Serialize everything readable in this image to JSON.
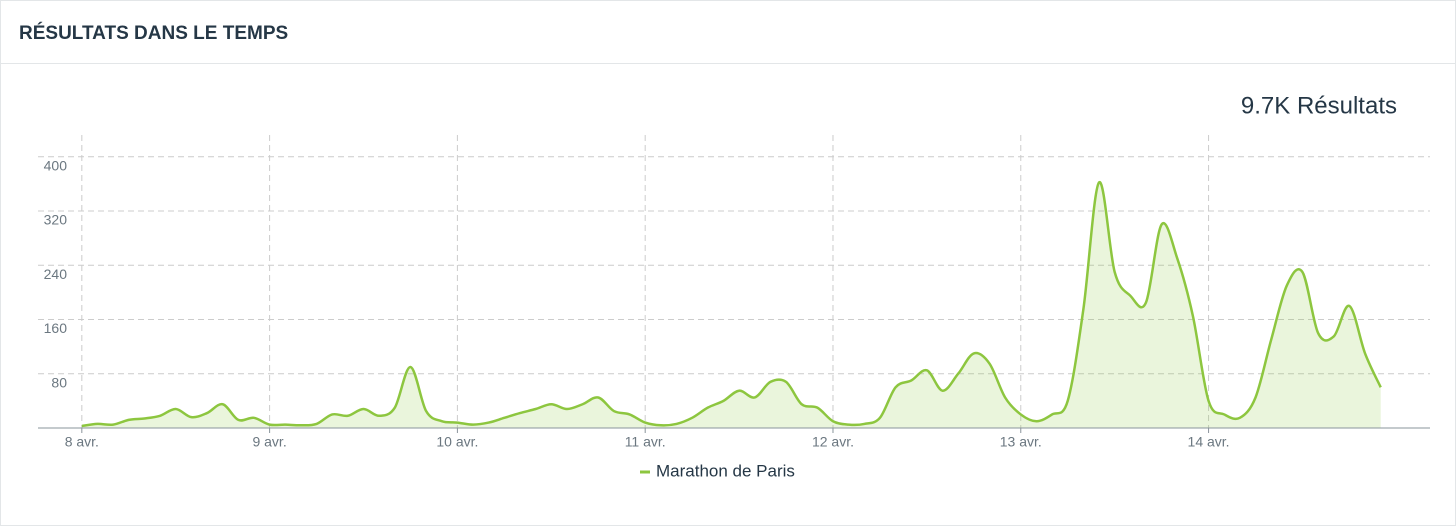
{
  "header": {
    "title": "RÉSULTATS DANS LE TEMPS"
  },
  "total": "9.7K Résultats",
  "chart_data": {
    "type": "area",
    "x": [
      0,
      2,
      4,
      6,
      8,
      10,
      12,
      14,
      16,
      18,
      20,
      22,
      24,
      26,
      28,
      30,
      32,
      34,
      36,
      38,
      40,
      42,
      44,
      46,
      48,
      50,
      52,
      54,
      56,
      58,
      60,
      62,
      64,
      66,
      68,
      70,
      72,
      74,
      76,
      78,
      80,
      82,
      84,
      86,
      88,
      90,
      92,
      94,
      96,
      98,
      100,
      102,
      104,
      106,
      108,
      110,
      112,
      114,
      116,
      118,
      120,
      122,
      124,
      126,
      128,
      130,
      132,
      134,
      136,
      138,
      140,
      142,
      144,
      146,
      148,
      150,
      152,
      154,
      156,
      158,
      160,
      162,
      164,
      166
    ],
    "series": [
      {
        "name": "Marathon de Paris",
        "color": "#8dc63f",
        "values": [
          3,
          6,
          5,
          12,
          14,
          18,
          28,
          16,
          22,
          35,
          12,
          15,
          5,
          5,
          4,
          6,
          20,
          18,
          28,
          18,
          30,
          90,
          25,
          10,
          8,
          5,
          8,
          15,
          22,
          28,
          35,
          28,
          35,
          45,
          25,
          20,
          8,
          4,
          6,
          15,
          30,
          40,
          55,
          45,
          68,
          68,
          35,
          30,
          10,
          5,
          6,
          15,
          60,
          70,
          85,
          55,
          80,
          110,
          95,
          45,
          20,
          10,
          20,
          40,
          175,
          362,
          230,
          195,
          185,
          300,
          250,
          165,
          40,
          20,
          15,
          45,
          130,
          210,
          230,
          140,
          135,
          180,
          110,
          60
        ]
      }
    ],
    "xlim": [
      -5.6,
      172.3
    ],
    "xticks": [
      {
        "value": 0,
        "label": "8 avr."
      },
      {
        "value": 24,
        "label": "9 avr."
      },
      {
        "value": 48,
        "label": "10 avr."
      },
      {
        "value": 72,
        "label": "11 avr."
      },
      {
        "value": 96,
        "label": "12 avr."
      },
      {
        "value": 120,
        "label": "13 avr."
      },
      {
        "value": 144,
        "label": "14 avr."
      }
    ],
    "ylim": [
      0,
      432
    ],
    "yticks": [
      80,
      160,
      240,
      320,
      400
    ],
    "grid": true
  }
}
